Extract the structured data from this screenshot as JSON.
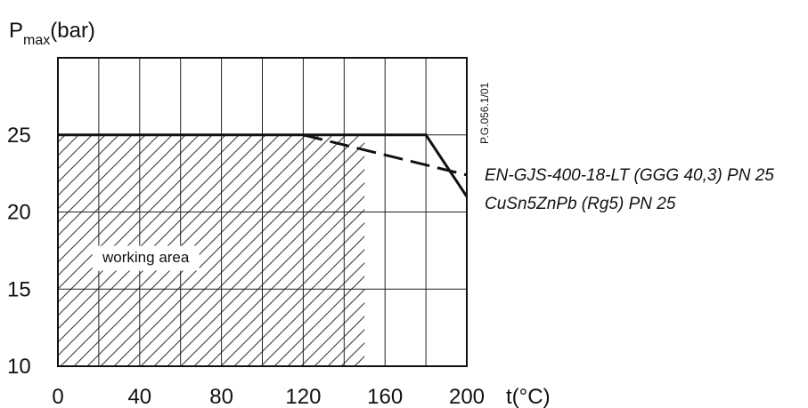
{
  "chart_data": {
    "type": "line",
    "ylabel": {
      "main": "P",
      "sub": "max",
      "unit": "(bar)"
    },
    "xlabel": "t(°C)",
    "x_ticks": [
      "0",
      "40",
      "80",
      "120",
      "160",
      "200"
    ],
    "y_ticks": [
      "10",
      "15",
      "20",
      "25"
    ],
    "xlim": [
      0,
      200
    ],
    "ylim": [
      10,
      30
    ],
    "grid": true,
    "series": [
      {
        "name": "EN-GJS-400-18-LT (GGG 40,3) PN 25",
        "style": "solid",
        "x": [
          0,
          180,
          200
        ],
        "y": [
          25,
          25,
          21
        ]
      },
      {
        "name": "CuSn5ZnPb (Rg5) PN 25",
        "style": "dashed",
        "x": [
          120,
          200
        ],
        "y": [
          25,
          22.4
        ]
      }
    ],
    "shaded_region": {
      "label": "working area",
      "x": [
        0,
        150
      ],
      "y": [
        10,
        25
      ]
    },
    "legend_placement": "right",
    "side_code": "P.G.056.1/01"
  }
}
